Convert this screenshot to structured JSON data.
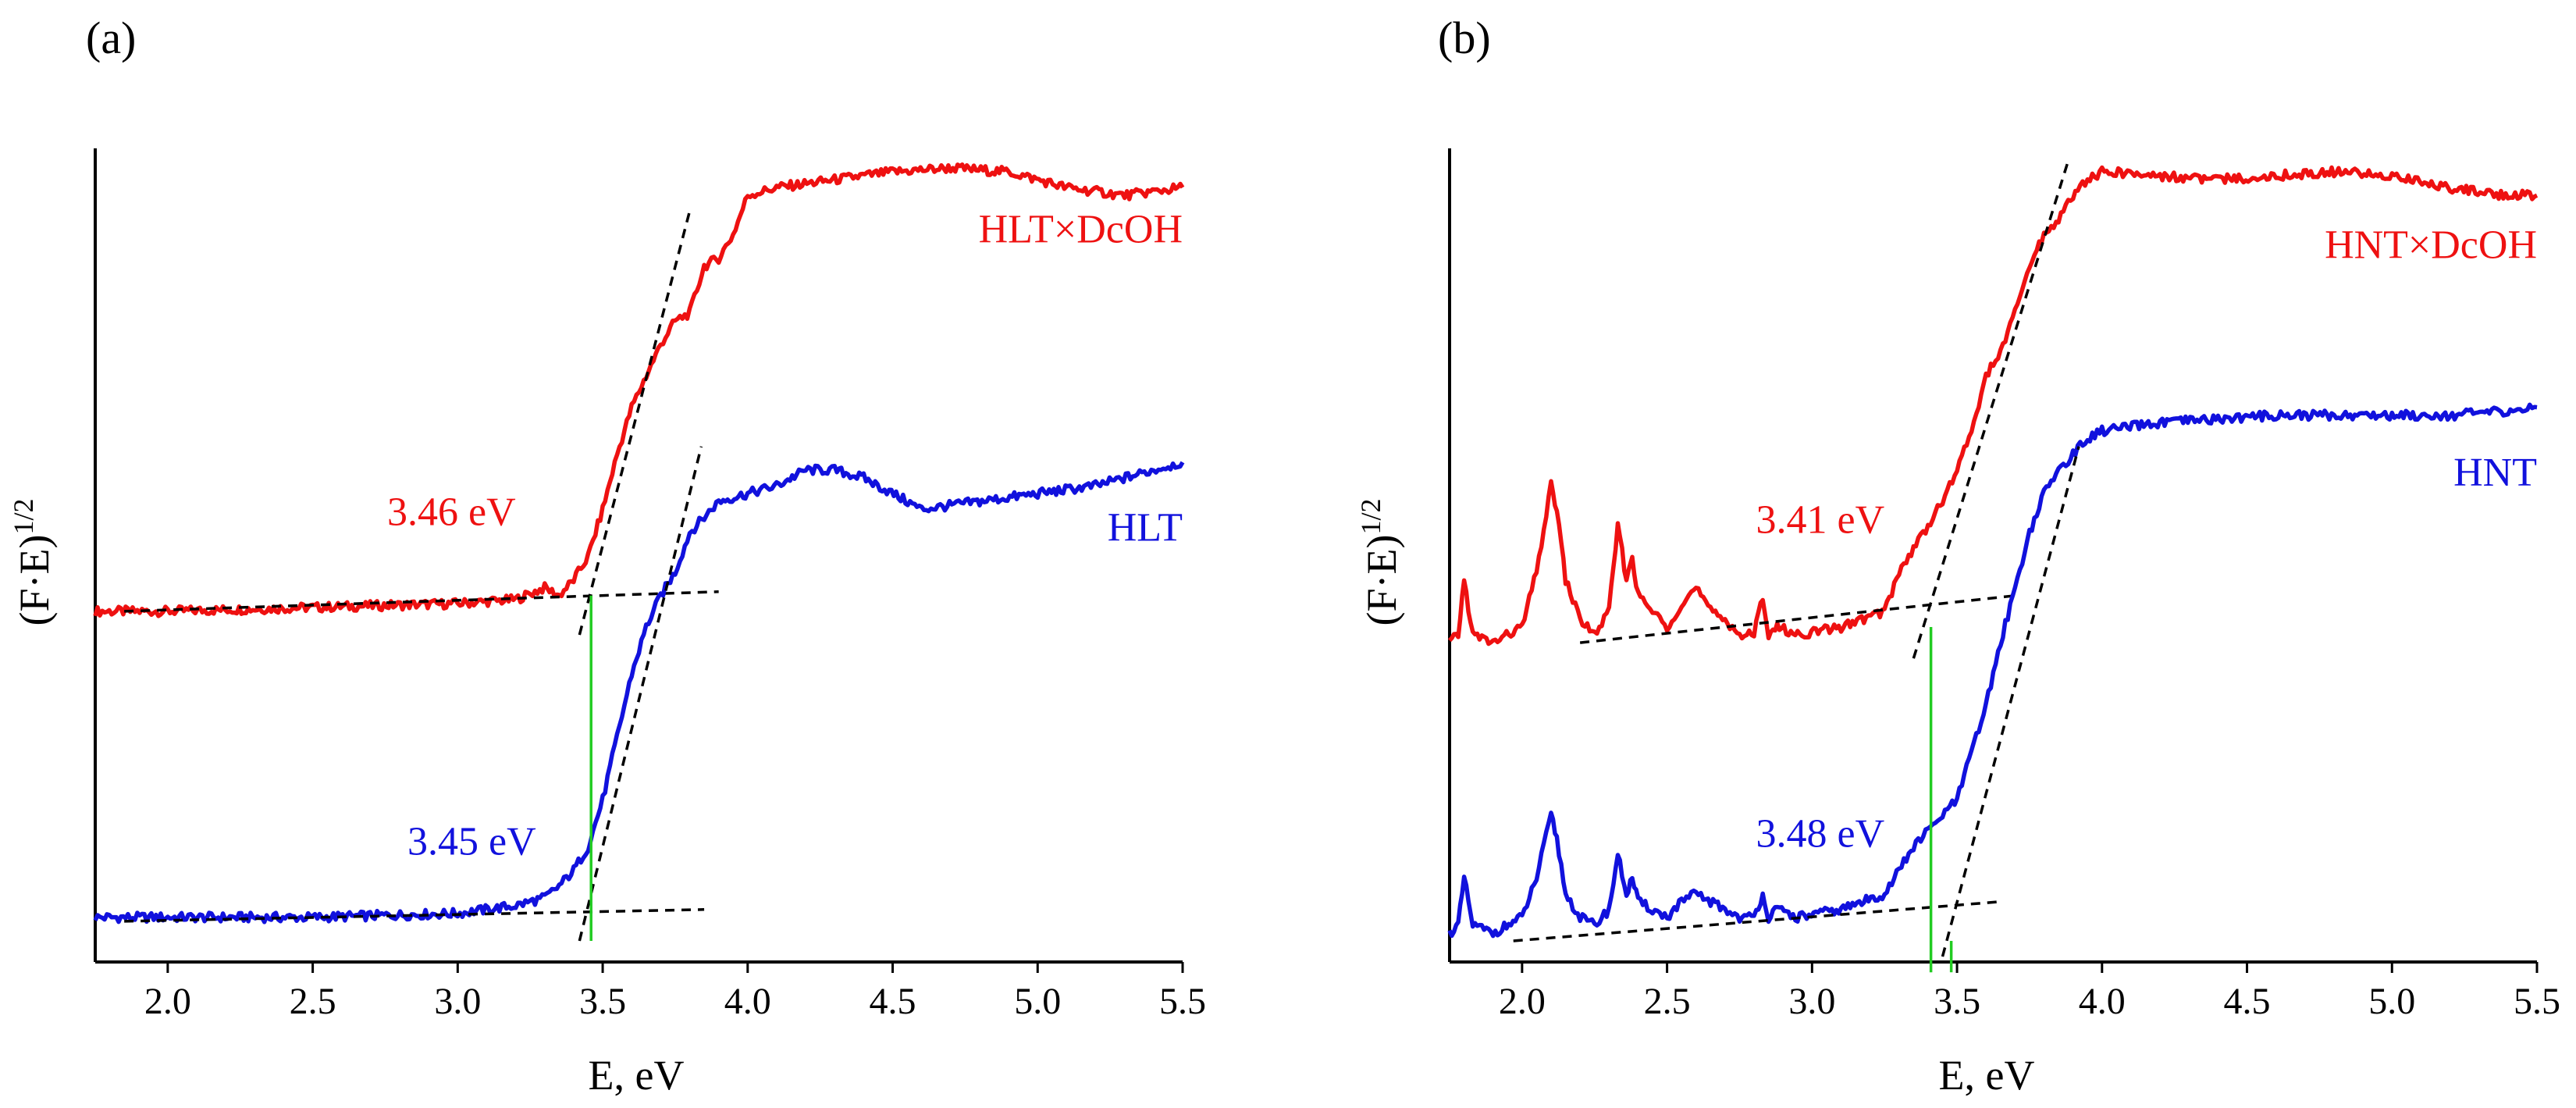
{
  "colors": {
    "red": "#ee1111",
    "blue": "#1111dd",
    "green": "#22cc22",
    "black": "#000000"
  },
  "chart_data": [
    {
      "type": "line",
      "panel_label": "(a)",
      "xlabel": "E, eV",
      "ylabel_main": "(F·E)",
      "ylabel_exp": "1/2",
      "xlim": [
        1.75,
        5.5
      ],
      "ylim": [
        0,
        1
      ],
      "xticks": [
        2.0,
        2.5,
        3.0,
        3.5,
        4.0,
        4.5,
        5.0,
        5.5
      ],
      "xtick_labels": [
        "2.0",
        "2.5",
        "3.0",
        "3.5",
        "4.0",
        "4.5",
        "5.0",
        "5.5"
      ],
      "series": [
        {
          "name": "HLT×DcOH",
          "color": "red",
          "label_text": "HLT×DcOH",
          "label_anchor": [
            5.5,
            0.89
          ],
          "gap_label": "3.46 eV",
          "gap_label_anchor": [
            3.2,
            0.53
          ],
          "x": [
            1.75,
            2.0,
            2.5,
            3.0,
            3.2,
            3.3,
            3.35,
            3.4,
            3.45,
            3.5,
            3.55,
            3.6,
            3.65,
            3.7,
            3.75,
            3.8,
            3.85,
            3.9,
            3.95,
            4.0,
            4.1,
            4.3,
            4.5,
            4.7,
            4.9,
            5.1,
            5.3,
            5.5
          ],
          "y": [
            0.42,
            0.42,
            0.425,
            0.43,
            0.435,
            0.45,
            0.44,
            0.46,
            0.49,
            0.55,
            0.62,
            0.68,
            0.72,
            0.76,
            0.79,
            0.8,
            0.86,
            0.87,
            0.9,
            0.95,
            0.96,
            0.97,
            0.98,
            0.985,
            0.98,
            0.96,
            0.95,
            0.96
          ],
          "baseline": {
            "x": [
              1.85,
              3.9
            ],
            "y": [
              0.42,
              0.445
            ]
          },
          "tangent": {
            "x": [
              3.42,
              3.8
            ],
            "y": [
              0.39,
              0.93
            ]
          }
        },
        {
          "name": "HLT",
          "color": "blue",
          "label_text": "HLT",
          "label_anchor": [
            5.5,
            0.51
          ],
          "gap_label": "3.45 eV",
          "gap_label_anchor": [
            3.27,
            0.11
          ],
          "x": [
            1.75,
            2.0,
            2.5,
            3.0,
            3.2,
            3.3,
            3.35,
            3.4,
            3.45,
            3.5,
            3.55,
            3.6,
            3.65,
            3.7,
            3.75,
            3.8,
            3.85,
            3.9,
            4.0,
            4.1,
            4.2,
            4.3,
            4.4,
            4.6,
            4.8,
            5.0,
            5.2,
            5.4,
            5.5
          ],
          "y": [
            0.03,
            0.03,
            0.03,
            0.035,
            0.045,
            0.055,
            0.07,
            0.09,
            0.12,
            0.18,
            0.26,
            0.34,
            0.4,
            0.44,
            0.47,
            0.52,
            0.54,
            0.56,
            0.57,
            0.58,
            0.6,
            0.6,
            0.59,
            0.55,
            0.56,
            0.57,
            0.58,
            0.6,
            0.61
          ],
          "baseline": {
            "x": [
              1.85,
              3.85
            ],
            "y": [
              0.025,
              0.04
            ]
          },
          "tangent": {
            "x": [
              3.42,
              3.84
            ],
            "y": [
              0.0,
              0.63
            ]
          }
        }
      ],
      "gap_marker": {
        "x": 3.46,
        "y_from": 0.0,
        "y_to": 0.44
      }
    },
    {
      "type": "line",
      "panel_label": "(b)",
      "xlabel": "E, eV",
      "ylabel_main": "(F·E)",
      "ylabel_exp": "1/2",
      "xlim": [
        1.75,
        5.5
      ],
      "ylim": [
        0,
        1
      ],
      "xticks": [
        2.0,
        2.5,
        3.0,
        3.5,
        4.0,
        4.5,
        5.0,
        5.5
      ],
      "xtick_labels": [
        "2.0",
        "2.5",
        "3.0",
        "3.5",
        "4.0",
        "4.5",
        "5.0",
        "5.5"
      ],
      "series": [
        {
          "name": "HNT×DcOH",
          "color": "red",
          "label_text": "HNT×DcOH",
          "label_anchor": [
            5.5,
            0.87
          ],
          "gap_label": "3.41 eV",
          "gap_label_anchor": [
            3.25,
            0.52
          ],
          "x": [
            1.75,
            1.78,
            1.8,
            1.83,
            1.9,
            2.0,
            2.05,
            2.1,
            2.12,
            2.15,
            2.2,
            2.25,
            2.3,
            2.33,
            2.36,
            2.38,
            2.4,
            2.45,
            2.5,
            2.55,
            2.6,
            2.65,
            2.7,
            2.75,
            2.8,
            2.83,
            2.85,
            2.88,
            2.95,
            3.1,
            3.25,
            3.3,
            3.35,
            3.4,
            3.45,
            3.5,
            3.55,
            3.6,
            3.65,
            3.7,
            3.75,
            3.8,
            3.85,
            3.9,
            3.95,
            4.0,
            4.2,
            4.4,
            4.6,
            4.8,
            5.0,
            5.2,
            5.4,
            5.5
          ],
          "y": [
            0.38,
            0.39,
            0.46,
            0.39,
            0.38,
            0.4,
            0.47,
            0.58,
            0.55,
            0.46,
            0.41,
            0.39,
            0.42,
            0.53,
            0.46,
            0.49,
            0.44,
            0.42,
            0.4,
            0.43,
            0.45,
            0.42,
            0.41,
            0.39,
            0.39,
            0.44,
            0.39,
            0.4,
            0.39,
            0.4,
            0.42,
            0.47,
            0.5,
            0.53,
            0.56,
            0.6,
            0.65,
            0.72,
            0.75,
            0.8,
            0.86,
            0.9,
            0.92,
            0.95,
            0.97,
            0.98,
            0.975,
            0.97,
            0.975,
            0.98,
            0.975,
            0.96,
            0.95,
            0.95
          ],
          "baseline": {
            "x": [
              2.2,
              3.7
            ],
            "y": [
              0.38,
              0.44
            ]
          },
          "tangent": {
            "x": [
              3.35,
              3.88
            ],
            "y": [
              0.36,
              0.99
            ]
          }
        },
        {
          "name": "HNT",
          "color": "blue",
          "label_text": "HNT",
          "label_anchor": [
            5.5,
            0.58
          ],
          "gap_label": "3.48 eV",
          "gap_label_anchor": [
            3.25,
            0.12
          ],
          "x": [
            1.75,
            1.78,
            1.8,
            1.83,
            1.9,
            2.0,
            2.05,
            2.1,
            2.12,
            2.15,
            2.2,
            2.25,
            2.3,
            2.33,
            2.36,
            2.38,
            2.4,
            2.45,
            2.5,
            2.55,
            2.6,
            2.65,
            2.7,
            2.75,
            2.8,
            2.83,
            2.85,
            2.88,
            2.95,
            3.1,
            3.25,
            3.3,
            3.35,
            3.4,
            3.45,
            3.5,
            3.55,
            3.6,
            3.65,
            3.7,
            3.75,
            3.8,
            3.85,
            3.9,
            3.95,
            4.0,
            4.2,
            4.4,
            4.6,
            4.8,
            5.0,
            5.2,
            5.4,
            5.5
          ],
          "y": [
            0.01,
            0.02,
            0.08,
            0.02,
            0.01,
            0.03,
            0.08,
            0.16,
            0.13,
            0.06,
            0.03,
            0.02,
            0.04,
            0.11,
            0.06,
            0.08,
            0.05,
            0.04,
            0.03,
            0.05,
            0.06,
            0.05,
            0.04,
            0.03,
            0.03,
            0.06,
            0.03,
            0.04,
            0.03,
            0.04,
            0.06,
            0.09,
            0.12,
            0.14,
            0.16,
            0.18,
            0.24,
            0.3,
            0.38,
            0.45,
            0.52,
            0.57,
            0.6,
            0.62,
            0.64,
            0.65,
            0.66,
            0.665,
            0.67,
            0.67,
            0.67,
            0.67,
            0.675,
            0.68
          ],
          "baseline": {
            "x": [
              1.97,
              3.65
            ],
            "y": [
              0.0,
              0.05
            ]
          },
          "tangent": {
            "x": [
              3.45,
              3.92
            ],
            "y": [
              -0.02,
              0.63
            ]
          }
        }
      ],
      "gap_marker": {
        "x": 3.41,
        "y_from": -0.04,
        "y_to": 0.4
      },
      "gap_marker_2": {
        "x": 3.48,
        "y_from": -0.04,
        "y_to": 0.0
      }
    }
  ]
}
